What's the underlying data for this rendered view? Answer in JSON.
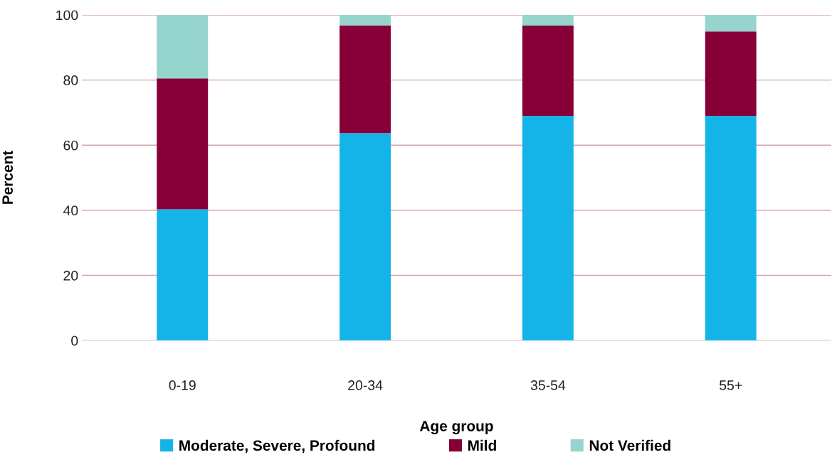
{
  "chart_data": {
    "type": "bar",
    "stacked": true,
    "xlabel": "Age group",
    "ylabel": "Percent",
    "categories": [
      "0-19",
      "20-34",
      "35-54",
      "55+"
    ],
    "series": [
      {
        "name": "Moderate, Severe, Profound",
        "color": "#15b4e8",
        "values": [
          40.3,
          63.7,
          69,
          69
        ]
      },
      {
        "name": "Mild",
        "color": "#860037",
        "values": [
          40.2,
          33.1,
          27.7,
          25.9
        ]
      },
      {
        "name": "Not Verified",
        "color": "#96d5cd",
        "values": [
          19.5,
          3.2,
          3.3,
          5.1
        ]
      }
    ],
    "ylim": [
      0,
      100
    ],
    "yticks": [
      0,
      20,
      40,
      60,
      80,
      100
    ],
    "grid": "y",
    "legend": "bottom"
  }
}
